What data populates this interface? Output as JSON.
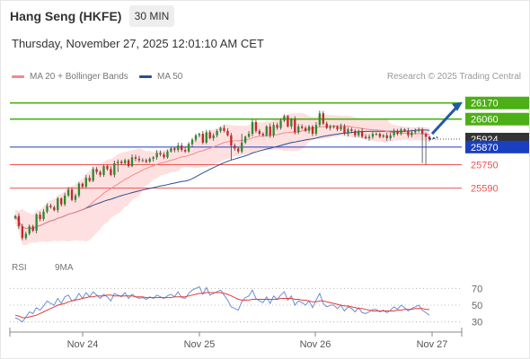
{
  "header": {
    "title": "Hang Seng (HKFE)",
    "timeframe": "30 MIN",
    "datetime": "Thursday, November 27, 2025 12:01:10 AM CET",
    "credit": "Research © 2025 Trading Central"
  },
  "legend": {
    "ma20_label": "MA 20 + Bollinger Bands",
    "ma50_label": "MA 50",
    "rsi_label": "RSI",
    "ma9_label": "9MA"
  },
  "colors": {
    "ma20": "#f28a8a",
    "ma50": "#2a4f8f",
    "bull": "#2e8b2e",
    "bear": "#c62828",
    "resistance": "#4caf16",
    "support": "#ef5350",
    "pivot": "#1a3fbf",
    "rsi": "#6b8fd6",
    "rsi_ma": "#e53935",
    "band": "#ffd6d6"
  },
  "chart_data": [
    {
      "type": "candlestick",
      "title": "Hang Seng (HKFE)",
      "timeframe": "30 MIN",
      "x_ticks": [
        "Nov 24",
        "Nov 25",
        "Nov 26",
        "Nov 27"
      ],
      "ylim": [
        25160,
        26260
      ],
      "last_price": 25924,
      "levels": [
        {
          "value": 26170,
          "label": "26170",
          "kind": "resistance"
        },
        {
          "value": 26060,
          "label": "26060",
          "kind": "resistance"
        },
        {
          "value": 25924,
          "label": "25924",
          "kind": "last"
        },
        {
          "value": 25870,
          "label": "25870",
          "kind": "pivot"
        },
        {
          "value": 25750,
          "label": "25750",
          "kind": "support"
        },
        {
          "value": 25590,
          "label": "25590",
          "kind": "support"
        }
      ],
      "close": [
        25400,
        25330,
        25250,
        25280,
        25330,
        25300,
        25410,
        25380,
        25430,
        25470,
        25460,
        25440,
        25520,
        25480,
        25540,
        25580,
        25510,
        25540,
        25620,
        25600,
        25660,
        25640,
        25720,
        25700,
        25680,
        25740,
        25720,
        25680,
        25760,
        25770,
        25760,
        25780,
        25740,
        25800,
        25790,
        25780,
        25780,
        25770,
        25790,
        25800,
        25830,
        25820,
        25800,
        25840,
        25860,
        25850,
        25880,
        25850,
        25840,
        25890,
        25920,
        25950,
        25960,
        25900,
        25970,
        25930,
        25950,
        25980,
        26000,
        25980,
        25950,
        25880,
        25860,
        25840,
        25900,
        25940,
        25960,
        26040,
        25980,
        25960,
        25950,
        26010,
        25950,
        26020,
        26000,
        26050,
        26080,
        26010,
        26060,
        25970,
        26010,
        26000,
        25980,
        26010,
        25960,
        26020,
        26100,
        26030,
        26000,
        26010,
        26010,
        25990,
        26010,
        25960,
        25990,
        25980,
        25950,
        25980,
        25940,
        25930,
        25940,
        25960,
        25960,
        25940,
        25950,
        25930,
        25950,
        25980,
        25960,
        25990,
        25980,
        25950,
        25970,
        25980,
        25990,
        25960,
        25940,
        25924
      ],
      "bollinger": {
        "upper_start": 25630,
        "upper_peak": 26070,
        "lower_start": 25150,
        "lower_end": 25880
      },
      "annotation": "projected upward path toward 26170"
    },
    {
      "type": "line",
      "title": "RSI",
      "series": [
        {
          "name": "RSI",
          "values": [
            35,
            33,
            30,
            36,
            42,
            40,
            47,
            44,
            49,
            55,
            52,
            50,
            58,
            52,
            60,
            62,
            55,
            57,
            64,
            58,
            65,
            60,
            66,
            62,
            58,
            63,
            60,
            55,
            64,
            62,
            60,
            65,
            58,
            63,
            60,
            58,
            59,
            57,
            60,
            58,
            62,
            60,
            58,
            61,
            63,
            60,
            66,
            59,
            58,
            64,
            68,
            70,
            72,
            63,
            71,
            62,
            64,
            66,
            68,
            62,
            56,
            48,
            46,
            44,
            54,
            59,
            61,
            68,
            58,
            55,
            53,
            60,
            52,
            61,
            57,
            62,
            66,
            56,
            61,
            50,
            55,
            53,
            50,
            55,
            47,
            56,
            64,
            52,
            48,
            50,
            50,
            46,
            50,
            43,
            48,
            46,
            42,
            47,
            41,
            40,
            42,
            45,
            45,
            42,
            44,
            41,
            44,
            48,
            45,
            50,
            47,
            43,
            46,
            48,
            50,
            44,
            41,
            38
          ]
        },
        {
          "name": "9MA",
          "values": [
            38,
            37,
            35,
            35,
            36,
            37,
            38,
            40,
            42,
            44,
            46,
            48,
            50,
            51,
            52,
            54,
            55,
            56,
            57,
            58,
            59,
            60,
            60,
            61,
            61,
            61,
            62,
            62,
            61,
            61,
            61,
            61,
            61,
            61,
            60,
            60,
            60,
            59,
            59,
            59,
            59,
            59,
            59,
            59,
            59,
            60,
            60,
            60,
            60,
            61,
            62,
            63,
            64,
            64,
            65,
            65,
            65,
            65,
            65,
            64,
            63,
            61,
            59,
            57,
            56,
            56,
            56,
            57,
            57,
            57,
            57,
            57,
            57,
            57,
            57,
            58,
            58,
            58,
            58,
            57,
            57,
            56,
            56,
            55,
            54,
            54,
            55,
            55,
            54,
            53,
            52,
            51,
            50,
            49,
            49,
            48,
            47,
            46,
            46,
            45,
            44,
            43,
            43,
            43,
            43,
            43,
            43,
            43,
            44,
            44,
            45,
            45,
            45,
            46,
            46,
            46,
            45,
            45
          ]
        }
      ],
      "yticks": [
        70,
        50,
        30
      ],
      "ylim": [
        20,
        80
      ],
      "x_ticks": [
        "Nov 24",
        "Nov 25",
        "Nov 26",
        "Nov 27"
      ]
    }
  ]
}
